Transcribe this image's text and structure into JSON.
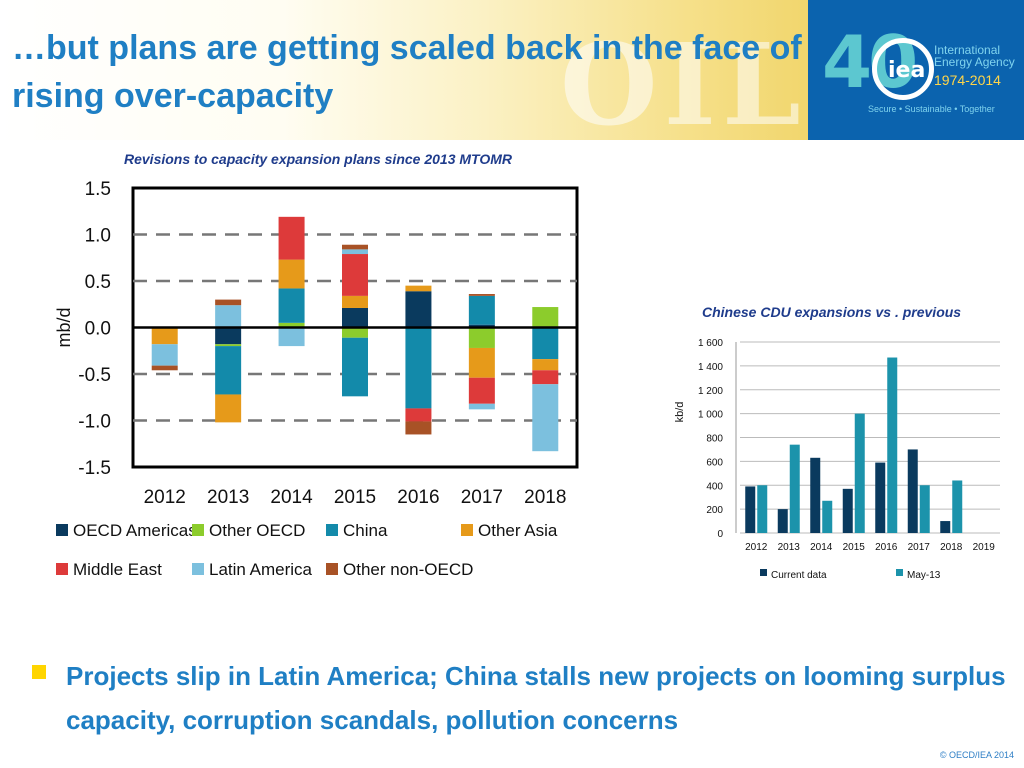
{
  "header": {
    "title": "…but plans are getting scaled back in the face of rising over-capacity",
    "banner_word": "OIL",
    "logo": {
      "number": "40",
      "acronym": "iea",
      "name": "International Energy Agency",
      "years": "1974-2014",
      "tagline": "Secure • Sustainable • Together"
    }
  },
  "colors": {
    "oecd_americas": "#0a3a5e",
    "other_oecd": "#8ccc2c",
    "china": "#138aaa",
    "other_asia": "#e69a1a",
    "middle_east": "#dd3a3a",
    "latin_america": "#7cc0de",
    "other_non_oecd": "#a85226",
    "current_data": "#0a3a5e",
    "may13": "#1c93ab"
  },
  "chart_data": [
    {
      "type": "bar",
      "stacked": true,
      "title": "Revisions to capacity expansion plans since 2013 MTOMR",
      "xlabel": "",
      "ylabel": "mb/d",
      "ylim": [
        -1.5,
        1.5
      ],
      "yticks": [
        "1.5",
        "1.0",
        "0.5",
        "0.0",
        "-0.5",
        "-1.0",
        "-1.5"
      ],
      "grid": "horizontal dashed",
      "legend_position": "bottom",
      "categories": [
        "2012",
        "2013",
        "2014",
        "2015",
        "2016",
        "2017",
        "2018"
      ],
      "series": [
        {
          "name": "OECD Americas",
          "key": "oecd_americas",
          "values": [
            0.0,
            -0.18,
            0.0,
            0.21,
            0.39,
            0.03,
            0.0
          ]
        },
        {
          "name": "Other OECD",
          "key": "other_oecd",
          "values": [
            0.0,
            -0.02,
            0.05,
            -0.11,
            0.0,
            -0.22,
            0.22
          ]
        },
        {
          "name": "China",
          "key": "china",
          "values": [
            -0.01,
            -0.52,
            0.37,
            -0.63,
            -0.87,
            0.31,
            -0.34
          ]
        },
        {
          "name": "Other Asia",
          "key": "other_asia",
          "values": [
            -0.17,
            -0.3,
            0.31,
            0.13,
            0.06,
            -0.32,
            -0.12
          ]
        },
        {
          "name": "Middle East",
          "key": "middle_east",
          "values": [
            0.0,
            0.0,
            0.46,
            0.45,
            -0.14,
            -0.28,
            -0.15
          ]
        },
        {
          "name": "Latin America",
          "key": "latin_america",
          "values": [
            -0.23,
            0.24,
            -0.2,
            0.05,
            0.0,
            -0.06,
            -0.72
          ]
        },
        {
          "name": "Other non-OECD",
          "key": "other_non_oecd",
          "values": [
            -0.05,
            0.06,
            0.0,
            0.05,
            -0.14,
            0.02,
            0.0
          ]
        }
      ]
    },
    {
      "type": "bar",
      "title": "Chinese CDU expansions vs . previous",
      "xlabel": "",
      "ylabel": "kb/d",
      "ylim": [
        0,
        1600
      ],
      "yticks": [
        "1 600",
        "1 400",
        "1 200",
        "1 000",
        "800",
        "600",
        "400",
        "200",
        "0"
      ],
      "grid": "horizontal",
      "legend_position": "bottom",
      "categories": [
        "2012",
        "2013",
        "2014",
        "2015",
        "2016",
        "2017",
        "2018",
        "2019"
      ],
      "series": [
        {
          "name": "Current data",
          "key": "current_data",
          "values": [
            390,
            200,
            630,
            370,
            590,
            700,
            100,
            0
          ]
        },
        {
          "name": "May-13",
          "key": "may13",
          "values": [
            400,
            740,
            270,
            1000,
            1470,
            400,
            440,
            0
          ]
        }
      ]
    }
  ],
  "bullet": {
    "text": "Projects slip in Latin America; China stalls new projects on looming surplus capacity, corruption scandals, pollution concerns"
  },
  "footer": {
    "copyright": "© OECD/IEA 2014"
  }
}
